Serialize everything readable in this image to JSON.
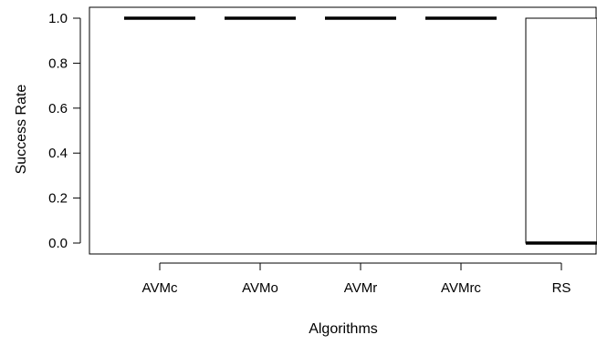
{
  "chart_data": {
    "type": "boxplot",
    "title": "",
    "xlabel": "Algorithms",
    "ylabel": "Success Rate",
    "ylim": [
      0.0,
      1.0
    ],
    "yticks": [
      0.0,
      0.2,
      0.4,
      0.6,
      0.8,
      1.0
    ],
    "ytick_labels": [
      "0.0",
      "0.2",
      "0.4",
      "0.6",
      "0.8",
      "1.0"
    ],
    "grid": false,
    "legend": "none",
    "categories": [
      "AVMc",
      "AVMo",
      "AVMr",
      "AVMrc",
      "RS"
    ],
    "boxes": [
      {
        "name": "AVMc",
        "min": 1.0,
        "q1": 1.0,
        "median": 1.0,
        "q3": 1.0,
        "max": 1.0
      },
      {
        "name": "AVMo",
        "min": 1.0,
        "q1": 1.0,
        "median": 1.0,
        "q3": 1.0,
        "max": 1.0
      },
      {
        "name": "AVMr",
        "min": 1.0,
        "q1": 1.0,
        "median": 1.0,
        "q3": 1.0,
        "max": 1.0
      },
      {
        "name": "AVMrc",
        "min": 1.0,
        "q1": 1.0,
        "median": 1.0,
        "q3": 1.0,
        "max": 1.0
      },
      {
        "name": "RS",
        "min": 0.0,
        "q1": 0.0,
        "median": 0.0,
        "q3": 1.0,
        "max": 1.0
      }
    ],
    "colors": {
      "stroke": "#000000",
      "fill": "#ffffff"
    }
  }
}
